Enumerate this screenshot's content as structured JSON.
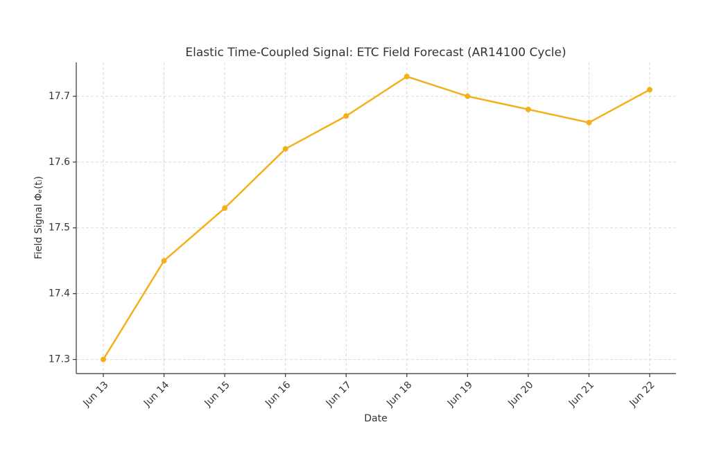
{
  "chart_data": {
    "type": "line",
    "title": "Elastic Time-Coupled Signal: ETC Field Forecast (AR14100 Cycle)",
    "x_label": "Date",
    "y_label": "Field Signal Φₑ(tᵢ)",
    "categories": [
      "Jun 13",
      "Jun 14",
      "Jun 15",
      "Jun 16",
      "Jun 17",
      "Jun 18",
      "Jun 19",
      "Jun 20",
      "Jun 21",
      "Jun 22"
    ],
    "values": [
      17.3,
      17.45,
      17.53,
      17.62,
      17.67,
      17.73,
      17.7,
      17.68,
      17.66,
      17.71
    ],
    "color": "#f4b01b",
    "ylim": [
      17.2785,
      17.7515
    ],
    "yticks": [
      {
        "value": 17.3,
        "label": "17.3"
      },
      {
        "value": 17.4,
        "label": "17.4"
      },
      {
        "value": 17.5,
        "label": "17.5"
      },
      {
        "value": 17.6,
        "label": "17.6"
      },
      {
        "value": 17.7,
        "label": "17.7"
      }
    ],
    "grid": true
  }
}
